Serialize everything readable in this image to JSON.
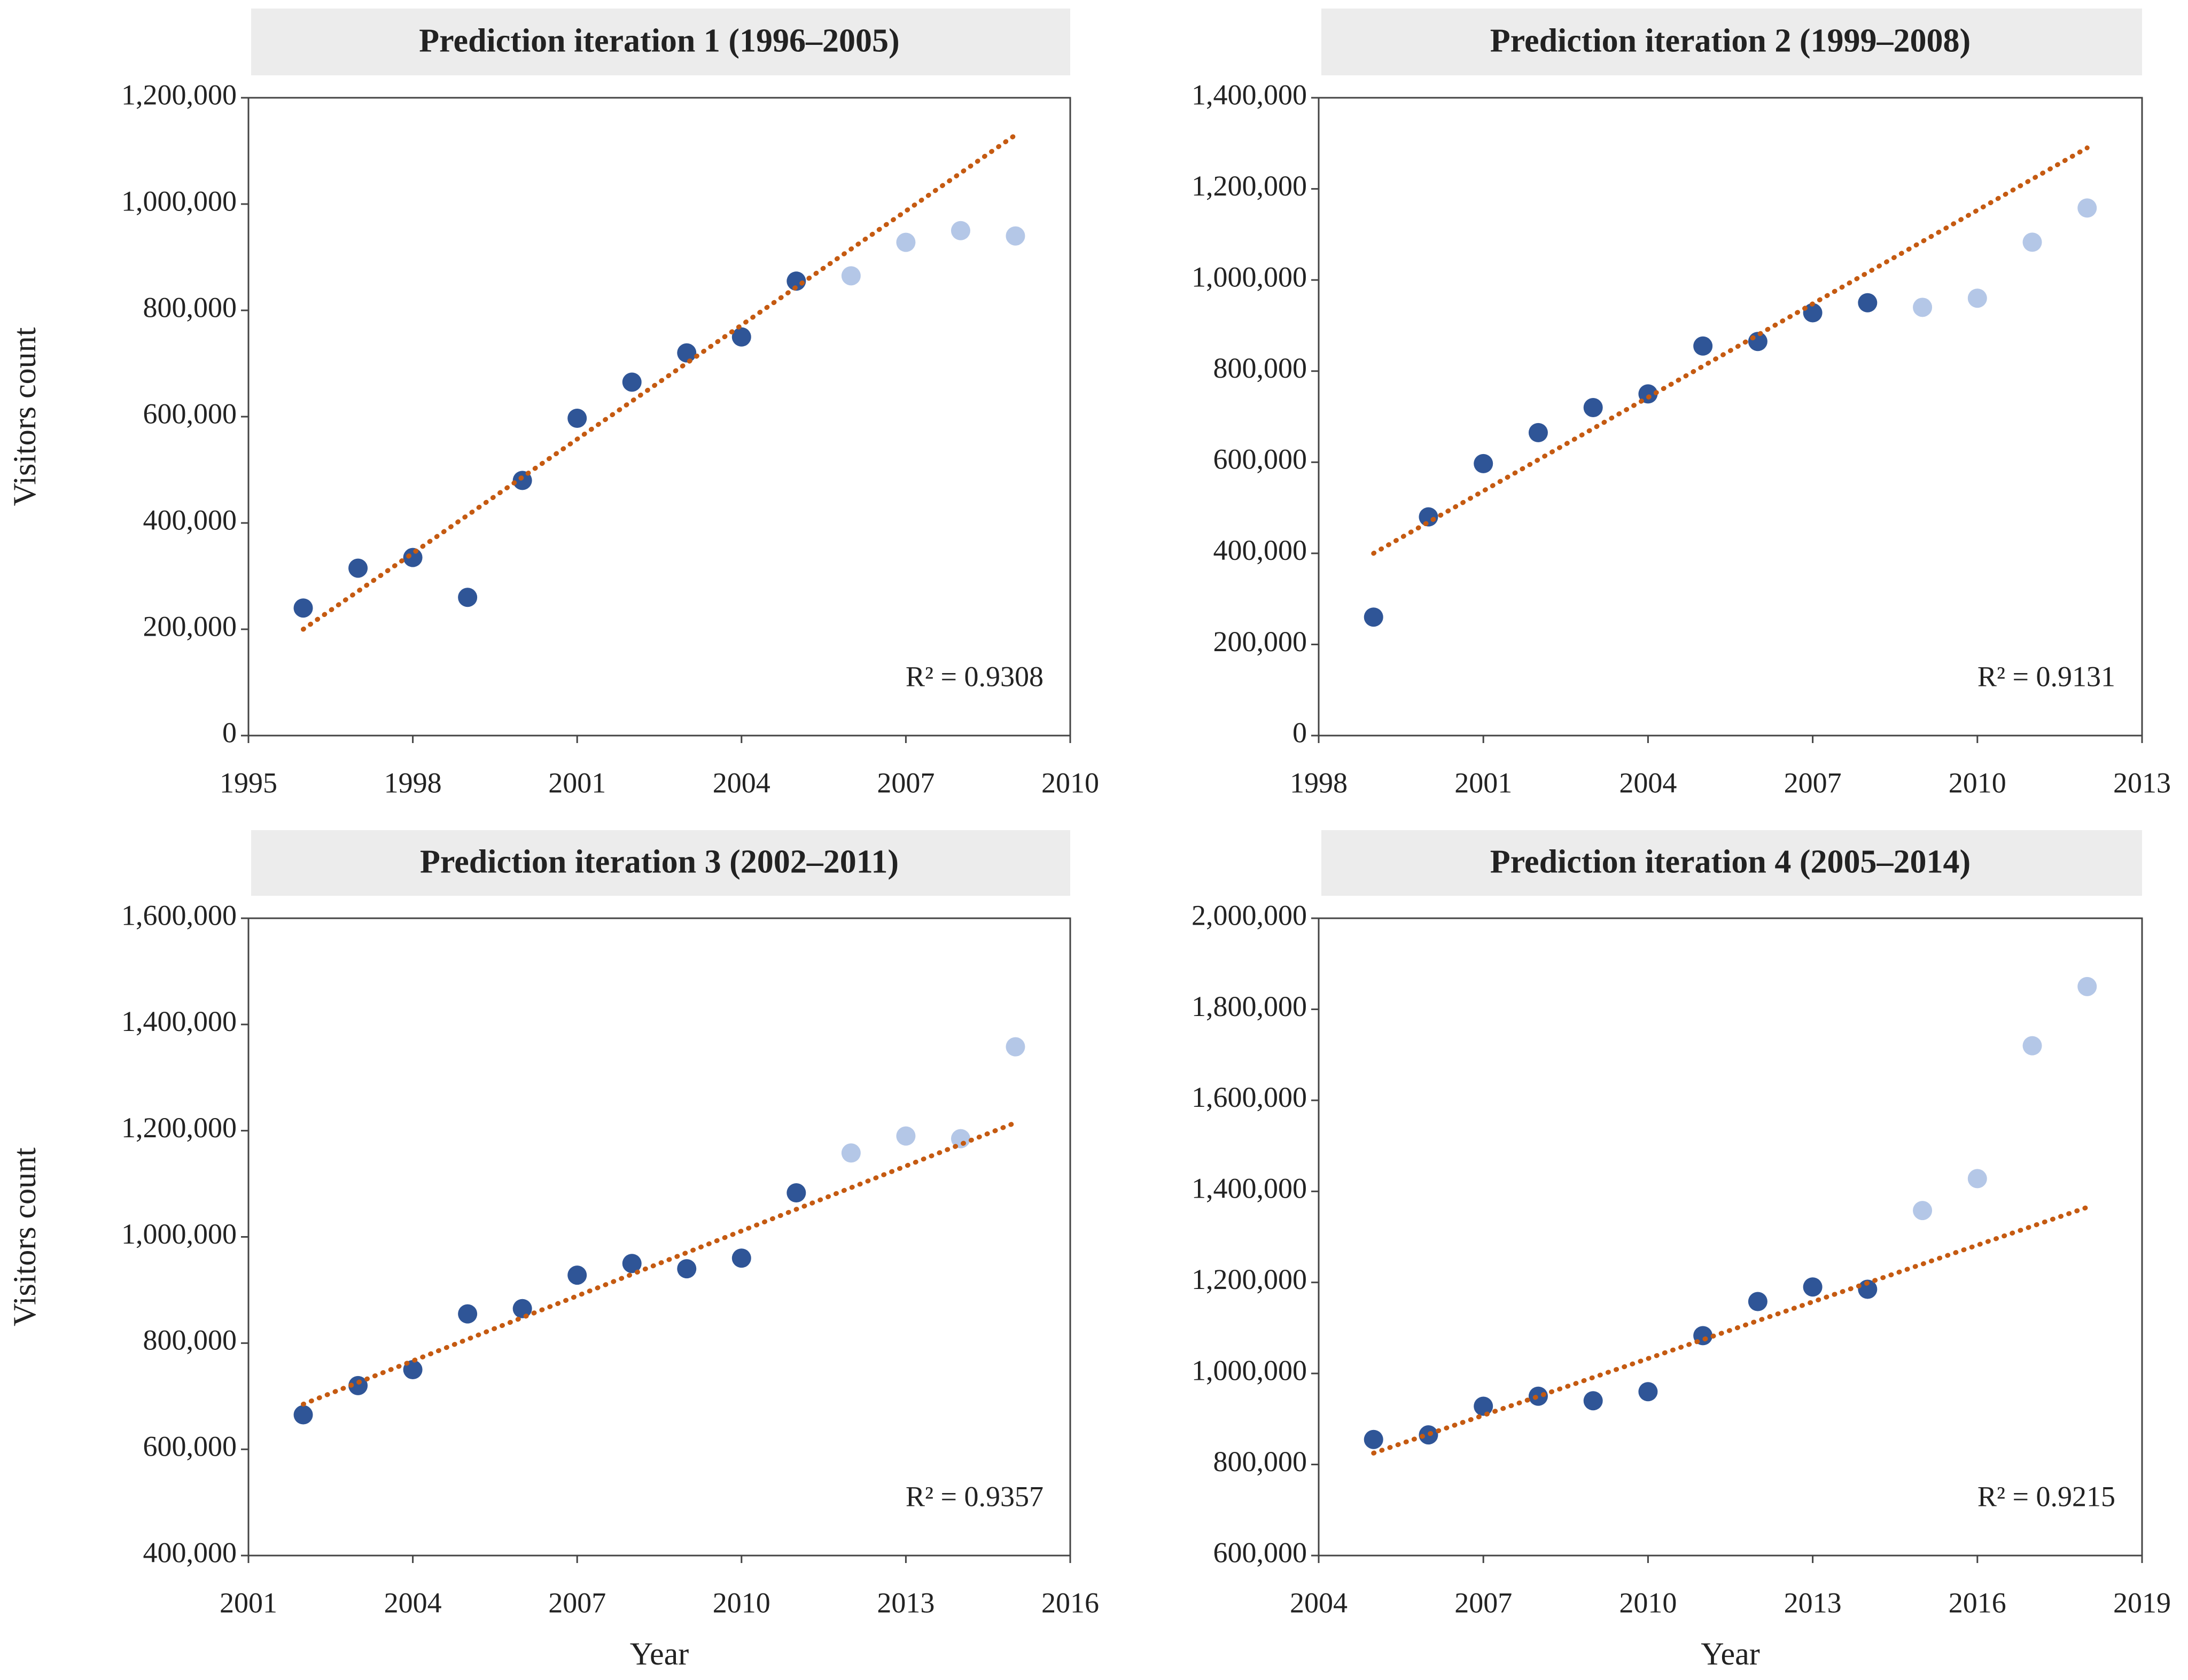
{
  "chart_data": [
    {
      "type": "scatter",
      "title": "Prediction iteration 1 (1996–2005)",
      "ylabel": "Visitors count",
      "annotation": "R² = 0.9308",
      "xlim": [
        1995,
        2010
      ],
      "xticks": [
        1995,
        1998,
        2001,
        2004,
        2007,
        2010
      ],
      "ylim": [
        0,
        1200000
      ],
      "yticks": [
        0,
        {
          "value": 200000,
          "label": "200,000"
        },
        {
          "value": 400000,
          "label": "400,000"
        },
        {
          "value": 600000,
          "label": "600,000"
        },
        {
          "value": 800000,
          "label": "800,000"
        },
        {
          "value": 1000000,
          "label": "1,000,000"
        },
        {
          "value": 1200000,
          "label": "1,200,000"
        }
      ],
      "series": [
        {
          "color": "#2f5597",
          "x": [
            1996,
            1997,
            1998,
            1999,
            2000,
            2001,
            2002,
            2003,
            2004,
            2005
          ],
          "values": [
            240000,
            315000,
            335000,
            260000,
            480000,
            597000,
            665000,
            720000,
            750000,
            855000
          ]
        },
        {
          "color": "#b4c7e7",
          "x": [
            2006,
            2007,
            2008,
            2009
          ],
          "values": [
            865000,
            928000,
            950000,
            940000
          ]
        },
        {
          "color": "#c55a11",
          "line": "dotted",
          "x": [
            1996,
            2009
          ],
          "values": [
            200000,
            1130000
          ]
        }
      ]
    },
    {
      "type": "scatter",
      "title": "Prediction iteration 2 (1999–2008)",
      "annotation": "R² = 0.9131",
      "xlim": [
        1998,
        2013
      ],
      "xticks": [
        1998,
        2001,
        2004,
        2007,
        2010,
        2013
      ],
      "ylim": [
        0,
        1400000
      ],
      "yticks": [
        0,
        {
          "value": 200000,
          "label": "200,000"
        },
        {
          "value": 400000,
          "label": "400,000"
        },
        {
          "value": 600000,
          "label": "600,000"
        },
        {
          "value": 800000,
          "label": "800,000"
        },
        {
          "value": 1000000,
          "label": "1,000,000"
        },
        {
          "value": 1200000,
          "label": "1,200,000"
        },
        {
          "value": 1400000,
          "label": "1,400,000"
        }
      ],
      "series": [
        {
          "color": "#2f5597",
          "x": [
            1999,
            2000,
            2001,
            2002,
            2003,
            2004,
            2005,
            2006,
            2007,
            2008
          ],
          "values": [
            260000,
            480000,
            597000,
            665000,
            720000,
            750000,
            855000,
            865000,
            928000,
            950000
          ]
        },
        {
          "color": "#b4c7e7",
          "x": [
            2009,
            2010,
            2011,
            2012
          ],
          "values": [
            940000,
            960000,
            1083000,
            1158000
          ]
        },
        {
          "color": "#c55a11",
          "line": "dotted",
          "x": [
            1999,
            2012
          ],
          "values": [
            400000,
            1290000
          ]
        }
      ]
    },
    {
      "type": "scatter",
      "title": "Prediction iteration 3 (2002–2011)",
      "ylabel": "Visitors count",
      "xlabel": "Year",
      "annotation": "R² = 0.9357",
      "xlim": [
        2001,
        2016
      ],
      "xticks": [
        2001,
        2004,
        2007,
        2010,
        2013,
        2016
      ],
      "ylim": [
        400000,
        1600000
      ],
      "yticks": [
        {
          "value": 400000,
          "label": "400,000"
        },
        {
          "value": 600000,
          "label": "600,000"
        },
        {
          "value": 800000,
          "label": "800,000"
        },
        {
          "value": 1000000,
          "label": "1,000,000"
        },
        {
          "value": 1200000,
          "label": "1,200,000"
        },
        {
          "value": 1400000,
          "label": "1,400,000"
        },
        {
          "value": 1600000,
          "label": "1,600,000"
        }
      ],
      "series": [
        {
          "color": "#2f5597",
          "x": [
            2002,
            2003,
            2004,
            2005,
            2006,
            2007,
            2008,
            2009,
            2010,
            2011
          ],
          "values": [
            665000,
            720000,
            750000,
            855000,
            865000,
            928000,
            950000,
            940000,
            960000,
            1083000
          ]
        },
        {
          "color": "#b4c7e7",
          "x": [
            2012,
            2013,
            2014,
            2015
          ],
          "values": [
            1158000,
            1190000,
            1185000,
            1358000
          ]
        },
        {
          "color": "#c55a11",
          "line": "dotted",
          "x": [
            2002,
            2015
          ],
          "values": [
            685000,
            1215000
          ]
        }
      ]
    },
    {
      "type": "scatter",
      "title": "Prediction iteration 4 (2005–2014)",
      "xlabel": "Year",
      "annotation": "R² = 0.9215",
      "xlim": [
        2004,
        2019
      ],
      "xticks": [
        2004,
        2007,
        2010,
        2013,
        2016,
        2019
      ],
      "ylim": [
        600000,
        2000000
      ],
      "yticks": [
        {
          "value": 600000,
          "label": "600,000"
        },
        {
          "value": 800000,
          "label": "800,000"
        },
        {
          "value": 1000000,
          "label": "1,000,000"
        },
        {
          "value": 1200000,
          "label": "1,200,000"
        },
        {
          "value": 1400000,
          "label": "1,400,000"
        },
        {
          "value": 1600000,
          "label": "1,600,000"
        },
        {
          "value": 1800000,
          "label": "1,800,000"
        },
        {
          "value": 2000000,
          "label": "2,000,000"
        }
      ],
      "series": [
        {
          "color": "#2f5597",
          "x": [
            2005,
            2006,
            2007,
            2008,
            2009,
            2010,
            2011,
            2012,
            2013,
            2014
          ],
          "values": [
            855000,
            865000,
            928000,
            950000,
            940000,
            960000,
            1083000,
            1158000,
            1190000,
            1185000
          ]
        },
        {
          "color": "#b4c7e7",
          "x": [
            2015,
            2016,
            2017,
            2018
          ],
          "values": [
            1358000,
            1428000,
            1720000,
            1850000
          ]
        },
        {
          "color": "#c55a11",
          "line": "dotted",
          "x": [
            2005,
            2018
          ],
          "values": [
            825000,
            1365000
          ]
        }
      ]
    }
  ]
}
